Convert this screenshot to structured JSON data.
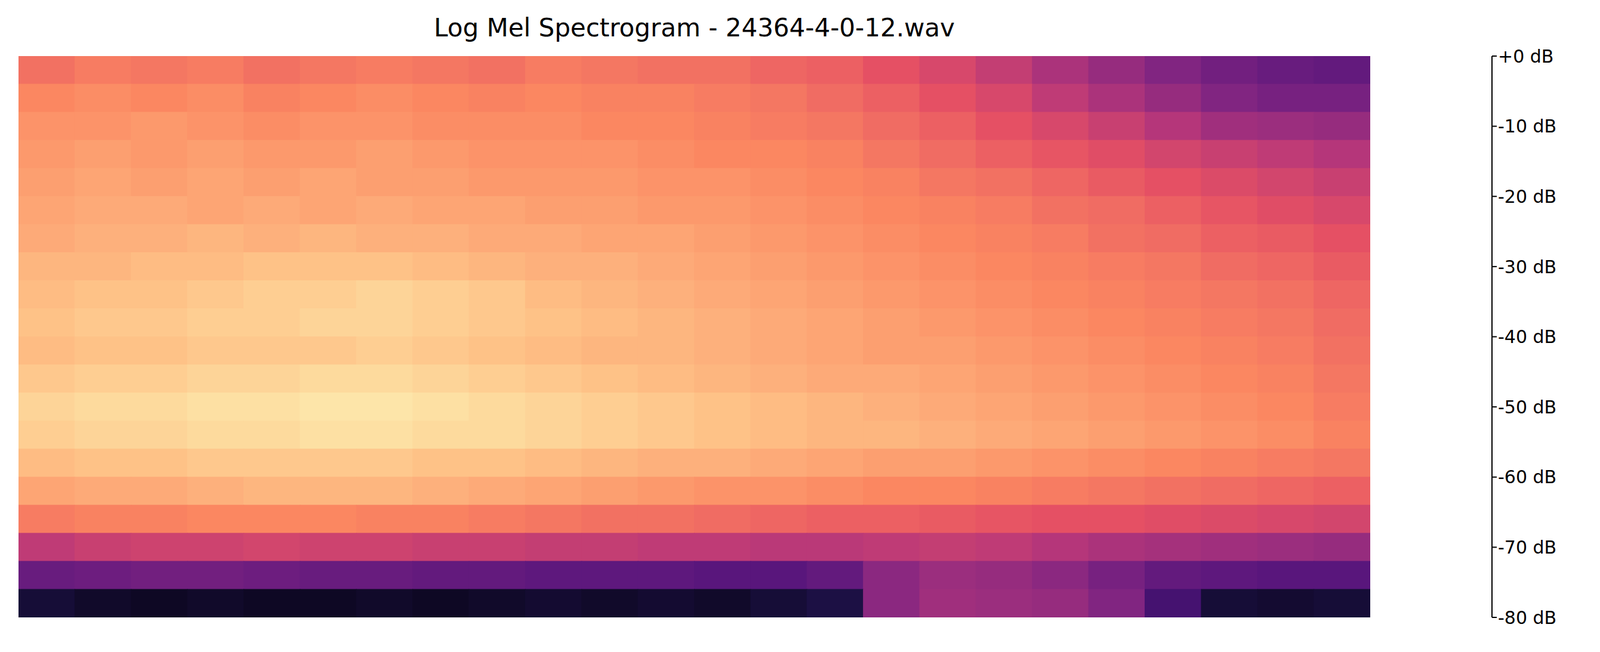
{
  "chart_data": {
    "type": "heatmap",
    "title": "Log Mel Spectrogram - 24364-4-0-12.wav",
    "tick_labels": false,
    "cells": [
      [
        -24,
        -22,
        -23,
        -22,
        -24,
        -23,
        -22,
        -23,
        -24,
        -22,
        -23,
        -24,
        -24,
        -26,
        -27,
        -30,
        -33,
        -37,
        -42,
        -46,
        -50,
        -53,
        -55,
        -56
      ],
      [
        -20,
        -19,
        -20,
        -19,
        -21,
        -20,
        -19,
        -20,
        -21,
        -20,
        -21,
        -21,
        -22,
        -23,
        -25,
        -27,
        -30,
        -33,
        -38,
        -42,
        -46,
        -50,
        -52,
        -52
      ],
      [
        -18,
        -18,
        -17,
        -18,
        -19,
        -18,
        -18,
        -19,
        -19,
        -19,
        -20,
        -20,
        -21,
        -22,
        -23,
        -25,
        -27,
        -30,
        -33,
        -36,
        -40,
        -44,
        -45,
        -46
      ],
      [
        -17,
        -16,
        -17,
        -16,
        -17,
        -17,
        -16,
        -17,
        -18,
        -18,
        -18,
        -19,
        -20,
        -20,
        -21,
        -23,
        -25,
        -27,
        -29,
        -31,
        -34,
        -36,
        -38,
        -40
      ],
      [
        -16,
        -15,
        -16,
        -15,
        -16,
        -15,
        -16,
        -16,
        -17,
        -17,
        -17,
        -18,
        -18,
        -19,
        -20,
        -21,
        -23,
        -24,
        -26,
        -28,
        -30,
        -32,
        -34,
        -36
      ],
      [
        -15,
        -14,
        -14,
        -15,
        -14,
        -15,
        -14,
        -15,
        -15,
        -16,
        -16,
        -17,
        -17,
        -18,
        -19,
        -20,
        -21,
        -22,
        -24,
        -25,
        -27,
        -29,
        -31,
        -33
      ],
      [
        -14,
        -13,
        -13,
        -12,
        -13,
        -12,
        -13,
        -13,
        -14,
        -14,
        -15,
        -15,
        -16,
        -17,
        -18,
        -19,
        -20,
        -21,
        -22,
        -24,
        -25,
        -27,
        -28,
        -30
      ],
      [
        -12,
        -12,
        -11,
        -11,
        -10,
        -10,
        -10,
        -11,
        -12,
        -13,
        -13,
        -14,
        -15,
        -16,
        -17,
        -18,
        -19,
        -20,
        -21,
        -22,
        -23,
        -25,
        -26,
        -28
      ],
      [
        -11,
        -10,
        -10,
        -9,
        -8,
        -8,
        -7,
        -8,
        -9,
        -11,
        -12,
        -13,
        -14,
        -15,
        -16,
        -17,
        -18,
        -19,
        -20,
        -21,
        -22,
        -23,
        -24,
        -26
      ],
      [
        -10,
        -9,
        -9,
        -8,
        -8,
        -7,
        -7,
        -8,
        -9,
        -10,
        -11,
        -12,
        -13,
        -14,
        -15,
        -16,
        -17,
        -18,
        -19,
        -20,
        -21,
        -22,
        -23,
        -25
      ],
      [
        -11,
        -10,
        -10,
        -9,
        -9,
        -9,
        -8,
        -9,
        -10,
        -11,
        -12,
        -12,
        -13,
        -14,
        -15,
        -16,
        -16,
        -17,
        -18,
        -19,
        -20,
        -21,
        -22,
        -24
      ],
      [
        -9,
        -8,
        -8,
        -7,
        -7,
        -6,
        -6,
        -7,
        -8,
        -9,
        -10,
        -11,
        -12,
        -13,
        -14,
        -14,
        -15,
        -16,
        -17,
        -18,
        -19,
        -20,
        -21,
        -23
      ],
      [
        -7,
        -6,
        -6,
        -5,
        -5,
        -4,
        -4,
        -5,
        -6,
        -7,
        -8,
        -9,
        -10,
        -11,
        -12,
        -13,
        -14,
        -15,
        -16,
        -17,
        -18,
        -19,
        -20,
        -22
      ],
      [
        -8,
        -7,
        -7,
        -6,
        -6,
        -5,
        -5,
        -6,
        -6,
        -7,
        -8,
        -9,
        -10,
        -11,
        -12,
        -12,
        -13,
        -14,
        -15,
        -16,
        -17,
        -18,
        -19,
        -21
      ],
      [
        -11,
        -10,
        -10,
        -9,
        -9,
        -9,
        -9,
        -10,
        -10,
        -11,
        -12,
        -13,
        -13,
        -14,
        -15,
        -16,
        -16,
        -17,
        -18,
        -19,
        -20,
        -21,
        -22,
        -23
      ],
      [
        -15,
        -14,
        -14,
        -13,
        -12,
        -12,
        -12,
        -13,
        -14,
        -15,
        -16,
        -17,
        -18,
        -18,
        -19,
        -20,
        -20,
        -21,
        -22,
        -23,
        -24,
        -25,
        -26,
        -27
      ],
      [
        -22,
        -21,
        -21,
        -20,
        -20,
        -20,
        -21,
        -21,
        -22,
        -23,
        -24,
        -24,
        -25,
        -26,
        -27,
        -27,
        -28,
        -29,
        -30,
        -30,
        -31,
        -32,
        -33,
        -34
      ],
      [
        -38,
        -36,
        -35,
        -35,
        -34,
        -35,
        -35,
        -36,
        -36,
        -37,
        -37,
        -38,
        -38,
        -39,
        -39,
        -38,
        -37,
        -38,
        -40,
        -42,
        -43,
        -44,
        -45,
        -46
      ],
      [
        -55,
        -54,
        -53,
        -53,
        -54,
        -55,
        -55,
        -56,
        -56,
        -57,
        -57,
        -57,
        -58,
        -58,
        -56,
        -48,
        -45,
        -46,
        -48,
        -52,
        -56,
        -57,
        -58,
        -58
      ],
      [
        -72,
        -74,
        -75,
        -74,
        -75,
        -75,
        -74,
        -75,
        -74,
        -73,
        -74,
        -73,
        -74,
        -72,
        -70,
        -48,
        -44,
        -45,
        -46,
        -50,
        -62,
        -72,
        -73,
        -72
      ]
    ],
    "colorbar": {
      "range": [
        -80,
        0
      ],
      "ticks": [
        {
          "value": 0,
          "label": "+0 dB"
        },
        {
          "value": -10,
          "label": "-10 dB"
        },
        {
          "value": -20,
          "label": "-20 dB"
        },
        {
          "value": -30,
          "label": "-30 dB"
        },
        {
          "value": -40,
          "label": "-40 dB"
        },
        {
          "value": -50,
          "label": "-50 dB"
        },
        {
          "value": -60,
          "label": "-60 dB"
        },
        {
          "value": -70,
          "label": "-70 dB"
        },
        {
          "value": -80,
          "label": "-80 dB"
        }
      ]
    }
  }
}
